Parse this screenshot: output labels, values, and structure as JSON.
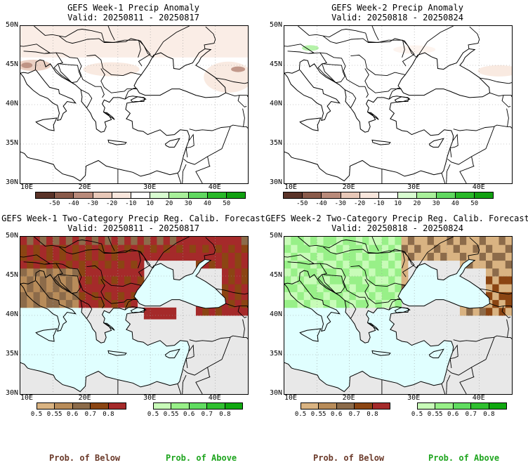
{
  "panels": [
    {
      "title": "GEFS Week-1 Precip Anomaly",
      "valid": "Valid: 20250811 - 20250817",
      "y_ticks": [
        "50N",
        "45N",
        "40N",
        "35N",
        "30N"
      ],
      "x_ticks": [
        "10E",
        "20E",
        "30E",
        "40E"
      ],
      "colorbar_labels": [
        "-50",
        "-40",
        "-30",
        "-20",
        "-10",
        "10",
        "20",
        "30",
        "40",
        "50"
      ]
    },
    {
      "title": "GEFS Week-2 Precip Anomaly",
      "valid": "Valid: 20250818 - 20250824",
      "y_ticks": [
        "50N",
        "45N",
        "40N",
        "35N",
        "30N"
      ],
      "x_ticks": [
        "10E",
        "20E",
        "30E",
        "40E"
      ],
      "colorbar_labels": [
        "-50",
        "-40",
        "-30",
        "-20",
        "-10",
        "10",
        "20",
        "30",
        "40",
        "50"
      ]
    },
    {
      "title": "GEFS Week-1 Two-Category Precip Reg. Calib. Forecast",
      "valid": "Valid: 20250811 - 20250817",
      "y_ticks": [
        "50N",
        "45N",
        "40N",
        "35N",
        "30N"
      ],
      "x_ticks": [
        "10E",
        "20E",
        "30E",
        "40E"
      ],
      "below_labels": [
        "0.5",
        "0.55",
        "0.6",
        "0.7",
        "0.8"
      ],
      "above_labels": [
        "0.5",
        "0.55",
        "0.6",
        "0.7",
        "0.8"
      ]
    },
    {
      "title": "GEFS Week-2 Two-Category Precip Reg. Calib. Forecast",
      "valid": "Valid: 20250818 - 20250824",
      "y_ticks": [
        "50N",
        "45N",
        "40N",
        "35N",
        "30N"
      ],
      "x_ticks": [
        "10E",
        "20E",
        "30E",
        "40E"
      ],
      "below_labels": [
        "0.5",
        "0.55",
        "0.6",
        "0.7",
        "0.8"
      ],
      "above_labels": [
        "0.5",
        "0.55",
        "0.6",
        "0.7",
        "0.8"
      ]
    }
  ],
  "legend": {
    "below_title": "Prob. of Below",
    "above_title": "Prob. of Above",
    "below_color": "#6b3a2a",
    "above_color": "#1fa51f"
  },
  "colors": {
    "anomaly_scale": [
      "#5a3328",
      "#8a5a4a",
      "#b98a7a",
      "#e8c8b8",
      "#f8e6dc",
      "#ffffff",
      "#d8fcd0",
      "#a8f09a",
      "#60d860",
      "#28b828",
      "#10a010"
    ],
    "below_scale": [
      "#d9b382",
      "#b88c5a",
      "#8c6b4a",
      "#8b4513",
      "#a52a2a"
    ],
    "above_scale": [
      "#c8fcb8",
      "#98f088",
      "#60dc60",
      "#30c030",
      "#10a810"
    ],
    "water_forecast": "#e0ffff",
    "no_data": "#e8e8e8"
  },
  "map_extent": {
    "lon": [
      10,
      45
    ],
    "lat": [
      30,
      50
    ]
  }
}
